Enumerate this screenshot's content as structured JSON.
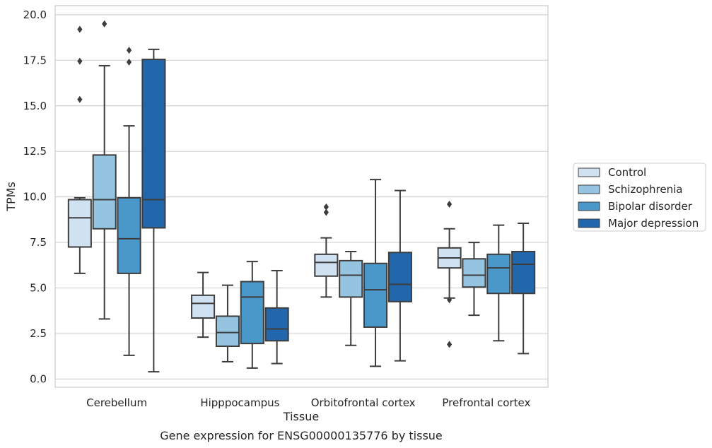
{
  "chart_data": {
    "type": "box",
    "xlabel": "Tissue",
    "ylabel": "TPMs",
    "caption": "Gene expression for ENSG00000135776 by tissue",
    "ylim": [
      -0.45,
      20.5
    ],
    "yticks": [
      "0.0",
      "2.5",
      "5.0",
      "7.5",
      "10.0",
      "12.5",
      "15.0",
      "17.5",
      "20.0"
    ],
    "grid": "horizontal",
    "legend_position": "right",
    "categories": [
      "Cerebellum",
      "Hipppocampus",
      "Orbitofrontal cortex",
      "Prefrontal cortex"
    ],
    "series": [
      {
        "name": "Control",
        "color": "#d0e1f2",
        "boxes": [
          {
            "whislo": 5.8,
            "q1": 7.25,
            "med": 8.85,
            "q3": 9.85,
            "whishi": 9.95,
            "fliers": [
              15.35,
              17.45,
              19.2
            ]
          },
          {
            "whislo": 2.3,
            "q1": 3.35,
            "med": 4.15,
            "q3": 4.6,
            "whishi": 5.85,
            "fliers": []
          },
          {
            "whislo": 4.5,
            "q1": 5.65,
            "med": 6.4,
            "q3": 6.85,
            "whishi": 7.75,
            "fliers": [
              9.15,
              9.45
            ]
          },
          {
            "whislo": 4.45,
            "q1": 6.1,
            "med": 6.65,
            "q3": 7.2,
            "whishi": 8.25,
            "fliers": [
              4.35,
              1.9,
              9.6
            ]
          }
        ]
      },
      {
        "name": "Schizophrenia",
        "color": "#94c4df",
        "boxes": [
          {
            "whislo": 3.3,
            "q1": 8.25,
            "med": 9.85,
            "q3": 12.3,
            "whishi": 17.2,
            "fliers": [
              19.5
            ]
          },
          {
            "whislo": 0.95,
            "q1": 1.8,
            "med": 2.55,
            "q3": 3.45,
            "whishi": 5.15,
            "fliers": []
          },
          {
            "whislo": 1.85,
            "q1": 4.5,
            "med": 5.7,
            "q3": 6.5,
            "whishi": 7.0,
            "fliers": []
          },
          {
            "whislo": 3.5,
            "q1": 5.05,
            "med": 5.7,
            "q3": 6.6,
            "whishi": 7.5,
            "fliers": []
          }
        ]
      },
      {
        "name": "Bipolar disorder",
        "color": "#4a98c9",
        "boxes": [
          {
            "whislo": 1.3,
            "q1": 5.8,
            "med": 7.7,
            "q3": 9.95,
            "whishi": 13.9,
            "fliers": [
              17.4,
              18.05
            ]
          },
          {
            "whislo": 0.6,
            "q1": 1.95,
            "med": 4.5,
            "q3": 5.35,
            "whishi": 6.45,
            "fliers": []
          },
          {
            "whislo": 0.7,
            "q1": 2.85,
            "med": 4.9,
            "q3": 6.35,
            "whishi": 10.95,
            "fliers": []
          },
          {
            "whislo": 2.1,
            "q1": 4.7,
            "med": 6.1,
            "q3": 6.85,
            "whishi": 8.45,
            "fliers": []
          }
        ]
      },
      {
        "name": "Major depression",
        "color": "#2266ac",
        "boxes": [
          {
            "whislo": 0.4,
            "q1": 8.3,
            "med": 9.85,
            "q3": 17.55,
            "whishi": 18.1,
            "fliers": []
          },
          {
            "whislo": 0.85,
            "q1": 2.1,
            "med": 2.75,
            "q3": 3.9,
            "whishi": 5.95,
            "fliers": []
          },
          {
            "whislo": 1.0,
            "q1": 4.25,
            "med": 5.2,
            "q3": 6.95,
            "whishi": 10.35,
            "fliers": []
          },
          {
            "whislo": 1.4,
            "q1": 4.7,
            "med": 6.3,
            "q3": 7.0,
            "whishi": 8.55,
            "fliers": []
          }
        ]
      }
    ]
  }
}
